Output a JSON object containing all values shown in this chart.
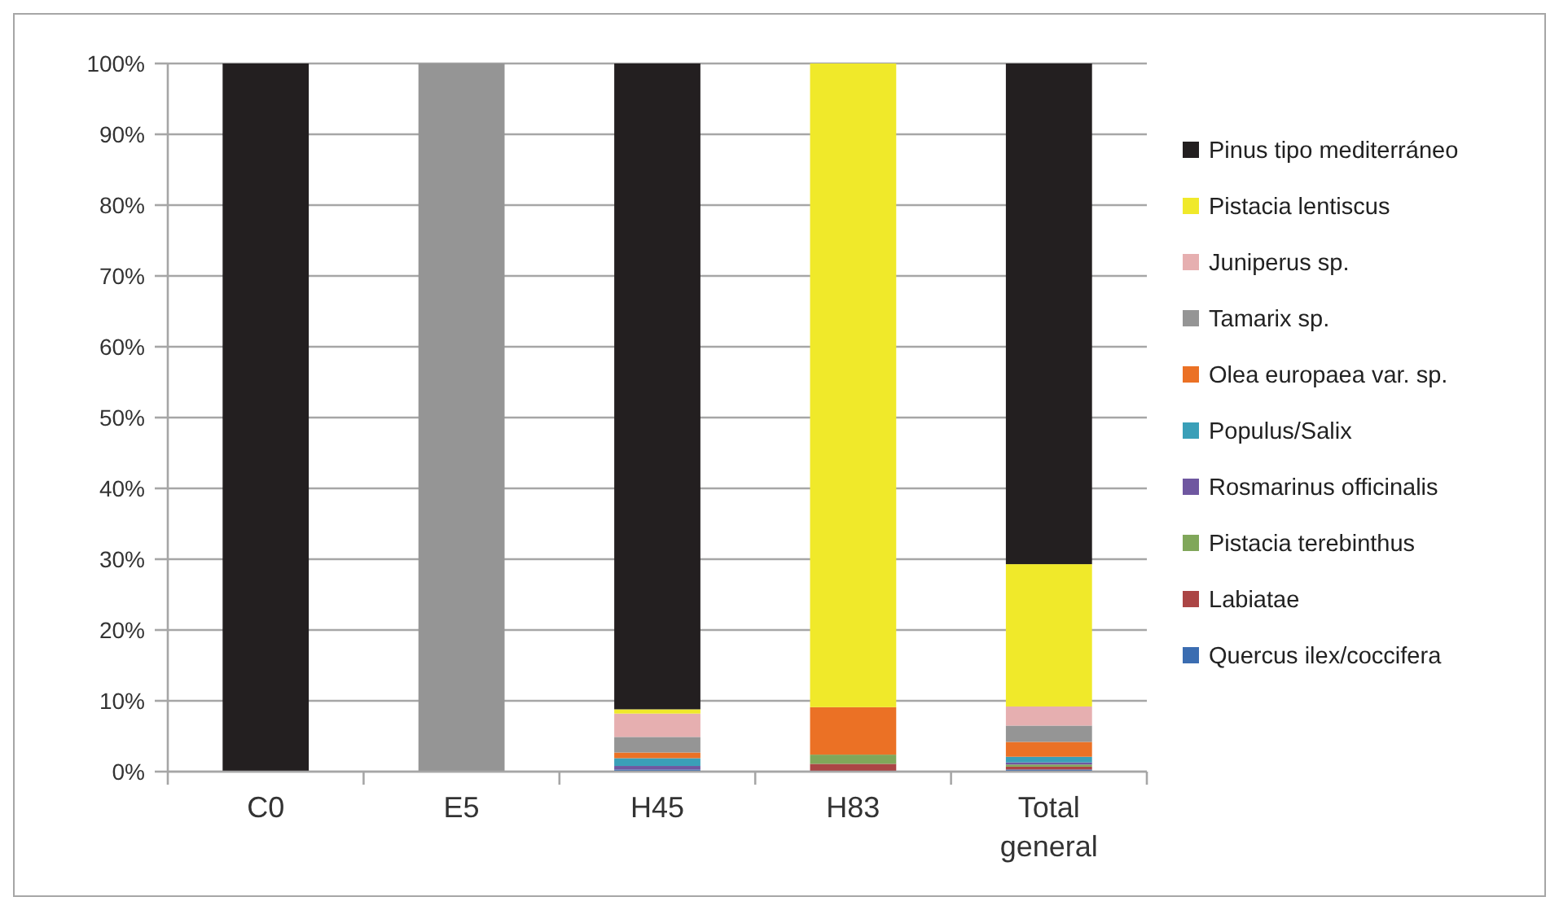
{
  "chart_data": {
    "type": "bar",
    "stacked": true,
    "categories": [
      "C0",
      "E5",
      "H45",
      "H83",
      "Total general"
    ],
    "series": [
      {
        "name": "Quercus ilex/coccifera",
        "color": "#3b6db1",
        "values": [
          0,
          0,
          0.3,
          0,
          0.3
        ]
      },
      {
        "name": "Labiatae",
        "color": "#ab4545",
        "values": [
          0,
          0,
          0,
          1.1,
          0.4
        ]
      },
      {
        "name": "Pistacia terebinthus",
        "color": "#80a75a",
        "values": [
          0,
          0,
          0,
          1.3,
          0.3
        ]
      },
      {
        "name": "Rosmarinus officinalis",
        "color": "#6f57a0",
        "values": [
          0,
          0,
          0.5,
          0,
          0.3
        ]
      },
      {
        "name": "Populus/Salix",
        "color": "#3a9fb8",
        "values": [
          0,
          0,
          1.1,
          0,
          0.8
        ]
      },
      {
        "name": "Olea europaea var. sp.",
        "color": "#eb7125",
        "values": [
          0,
          0,
          0.8,
          6.7,
          2.1
        ]
      },
      {
        "name": "Tamarix sp.",
        "color": "#959595",
        "values": [
          0,
          100,
          2.2,
          0,
          2.3
        ]
      },
      {
        "name": "Juniperus sp.",
        "color": "#e6afb0",
        "values": [
          0,
          0,
          3.3,
          0,
          2.7
        ]
      },
      {
        "name": "Pistacia lentiscus",
        "color": "#f0e92a",
        "values": [
          0,
          0,
          0.6,
          90.9,
          20.1
        ]
      },
      {
        "name": "Pinus tipo mediterráneo",
        "color": "#231f20",
        "values": [
          100,
          0,
          91.2,
          0,
          70.7
        ]
      }
    ],
    "ylim": [
      0,
      100
    ],
    "yticks": [
      {
        "value": 0,
        "label": "0%"
      },
      {
        "value": 10,
        "label": "10%"
      },
      {
        "value": 20,
        "label": "20%"
      },
      {
        "value": 30,
        "label": "30%"
      },
      {
        "value": 40,
        "label": "40%"
      },
      {
        "value": 50,
        "label": "50%"
      },
      {
        "value": 60,
        "label": "60%"
      },
      {
        "value": 70,
        "label": "70%"
      },
      {
        "value": 80,
        "label": "80%"
      },
      {
        "value": 90,
        "label": "90%"
      },
      {
        "value": 100,
        "label": "100%"
      }
    ],
    "grid": "y",
    "legend": "right"
  }
}
